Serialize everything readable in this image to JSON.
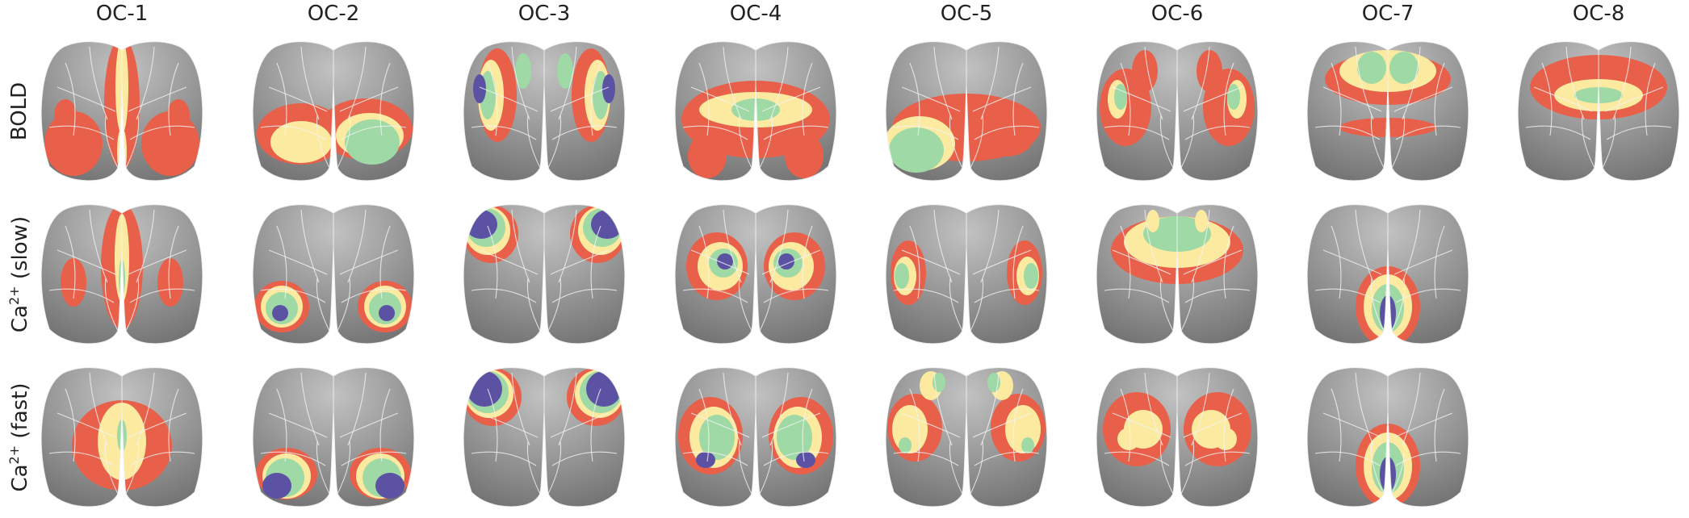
{
  "columns": [
    "OC-1",
    "OC-2",
    "OC-3",
    "OC-4",
    "OC-5",
    "OC-6",
    "OC-7",
    "OC-8"
  ],
  "rows": [
    {
      "prefix": "BOLD",
      "sup": "",
      "suffix": ""
    },
    {
      "prefix": "Ca",
      "sup": "2+",
      "suffix": " (slow)"
    },
    {
      "prefix": "Ca",
      "sup": "2+",
      "suffix": " (fast)"
    }
  ],
  "colors": {
    "red": "#e8604a",
    "yellow": "#fbeaa0",
    "green": "#9fd9a5",
    "purple": "#5b52a3",
    "brain_light": "#c2c2c2",
    "brain_dark": "#6a6a6a",
    "outline": "#f4f4f4"
  }
}
